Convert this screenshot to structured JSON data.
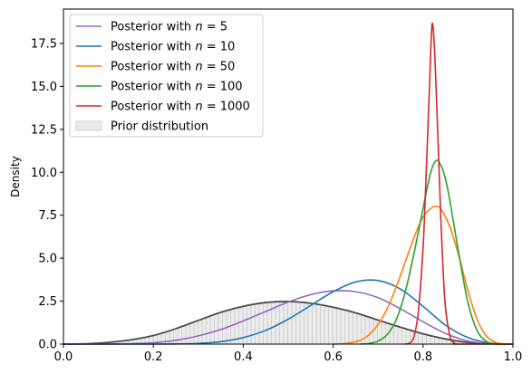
{
  "chart_data": {
    "type": "line",
    "xlabel": "",
    "ylabel": "Density",
    "xlim": [
      0.0,
      1.0
    ],
    "ylim": [
      0.0,
      19.5
    ],
    "x_ticks": [
      0.0,
      0.2,
      0.4,
      0.6,
      0.8,
      1.0
    ],
    "x_tick_labels": [
      "0.0",
      "0.2",
      "0.4",
      "0.6",
      "0.8",
      "1.0"
    ],
    "y_ticks": [
      0.0,
      2.5,
      5.0,
      7.5,
      10.0,
      12.5,
      15.0,
      17.5
    ],
    "y_tick_labels": [
      "0.0",
      "2.5",
      "5.0",
      "7.5",
      "10.0",
      "12.5",
      "15.0",
      "17.5"
    ],
    "legend_position": "top-left",
    "x": [
      0.0,
      0.05,
      0.1,
      0.15,
      0.2,
      0.25,
      0.3,
      0.35,
      0.4,
      0.45,
      0.5,
      0.55,
      0.6,
      0.65,
      0.7,
      0.75,
      0.8,
      0.85,
      0.9,
      0.95,
      1.0
    ],
    "series": [
      {
        "name": "Posterior with $n = 5$",
        "legend_prefix": "Posterior with ",
        "legend_n": "5",
        "color": "#9467bd",
        "x": [
          0.0,
          0.05,
          0.1,
          0.15,
          0.2,
          0.25,
          0.3,
          0.35,
          0.4,
          0.45,
          0.5,
          0.55,
          0.6,
          0.65,
          0.7,
          0.75,
          0.8,
          0.85,
          0.9,
          0.95,
          1.0
        ],
        "values": [
          0.0,
          0.0,
          0.0,
          0.02,
          0.08,
          0.22,
          0.48,
          0.85,
          1.35,
          1.9,
          2.45,
          2.88,
          3.1,
          3.05,
          2.7,
          2.05,
          1.3,
          0.62,
          0.18,
          0.02,
          0.0
        ]
      },
      {
        "name": "Posterior with $n = 10$",
        "legend_prefix": "Posterior with ",
        "legend_n": "10",
        "color": "#1f77b4",
        "x": [
          0.0,
          0.05,
          0.1,
          0.15,
          0.2,
          0.25,
          0.3,
          0.35,
          0.4,
          0.45,
          0.5,
          0.55,
          0.6,
          0.65,
          0.7,
          0.75,
          0.8,
          0.85,
          0.9,
          0.95,
          1.0
        ],
        "values": [
          0.0,
          0.0,
          0.0,
          0.0,
          0.0,
          0.01,
          0.04,
          0.14,
          0.38,
          0.8,
          1.45,
          2.25,
          3.05,
          3.62,
          3.7,
          3.2,
          2.2,
          1.1,
          0.38,
          0.06,
          0.0
        ]
      },
      {
        "name": "Posterior with $n = 50$",
        "legend_prefix": "Posterior with ",
        "legend_n": "50",
        "color": "#ff7f0e",
        "x": [
          0.6,
          0.62,
          0.64,
          0.66,
          0.68,
          0.7,
          0.72,
          0.74,
          0.76,
          0.78,
          0.8,
          0.82,
          0.83,
          0.84,
          0.86,
          0.88,
          0.9,
          0.92,
          0.94,
          0.96,
          0.98,
          1.0
        ],
        "values": [
          0.0,
          0.02,
          0.08,
          0.22,
          0.55,
          1.15,
          2.05,
          3.3,
          4.75,
          6.2,
          7.4,
          7.95,
          8.0,
          7.85,
          6.8,
          5.1,
          3.1,
          1.45,
          0.5,
          0.11,
          0.01,
          0.0
        ]
      },
      {
        "name": "Posterior with $n = 100$",
        "legend_prefix": "Posterior with ",
        "legend_n": "100",
        "color": "#2ca02c",
        "x": [
          0.66,
          0.68,
          0.7,
          0.72,
          0.74,
          0.76,
          0.78,
          0.8,
          0.81,
          0.82,
          0.83,
          0.84,
          0.85,
          0.86,
          0.88,
          0.9,
          0.92,
          0.94,
          0.96,
          1.0
        ],
        "values": [
          0.0,
          0.04,
          0.18,
          0.55,
          1.4,
          3.0,
          5.3,
          7.9,
          9.2,
          10.25,
          10.7,
          10.4,
          9.6,
          8.3,
          5.2,
          2.4,
          0.8,
          0.18,
          0.02,
          0.0
        ]
      },
      {
        "name": "Posterior with $n = 1000$",
        "legend_prefix": "Posterior with ",
        "legend_n": "1000",
        "color": "#d62728",
        "x": [
          0.76,
          0.77,
          0.78,
          0.79,
          0.8,
          0.805,
          0.81,
          0.815,
          0.82,
          0.825,
          0.83,
          0.835,
          0.84,
          0.845,
          0.85,
          0.86,
          0.87,
          0.88,
          1.0
        ],
        "values": [
          0.0,
          0.06,
          0.45,
          2.0,
          5.6,
          8.6,
          12.0,
          15.5,
          18.6,
          17.4,
          14.2,
          10.6,
          7.0,
          4.1,
          2.1,
          0.45,
          0.05,
          0.0,
          0.0
        ]
      }
    ],
    "prior": {
      "name": "Prior distribution",
      "line_color": "#4d4d4d",
      "fill_color": "#ebebeb",
      "x": [
        0.0,
        0.05,
        0.1,
        0.15,
        0.2,
        0.25,
        0.3,
        0.35,
        0.4,
        0.45,
        0.5,
        0.55,
        0.6,
        0.65,
        0.7,
        0.75,
        0.8,
        0.85,
        0.9,
        0.95,
        1.0
      ],
      "values": [
        0.0,
        0.02,
        0.1,
        0.25,
        0.5,
        0.9,
        1.38,
        1.85,
        2.2,
        2.42,
        2.48,
        2.38,
        2.15,
        1.82,
        1.4,
        0.98,
        0.6,
        0.3,
        0.1,
        0.02,
        0.0
      ]
    }
  }
}
